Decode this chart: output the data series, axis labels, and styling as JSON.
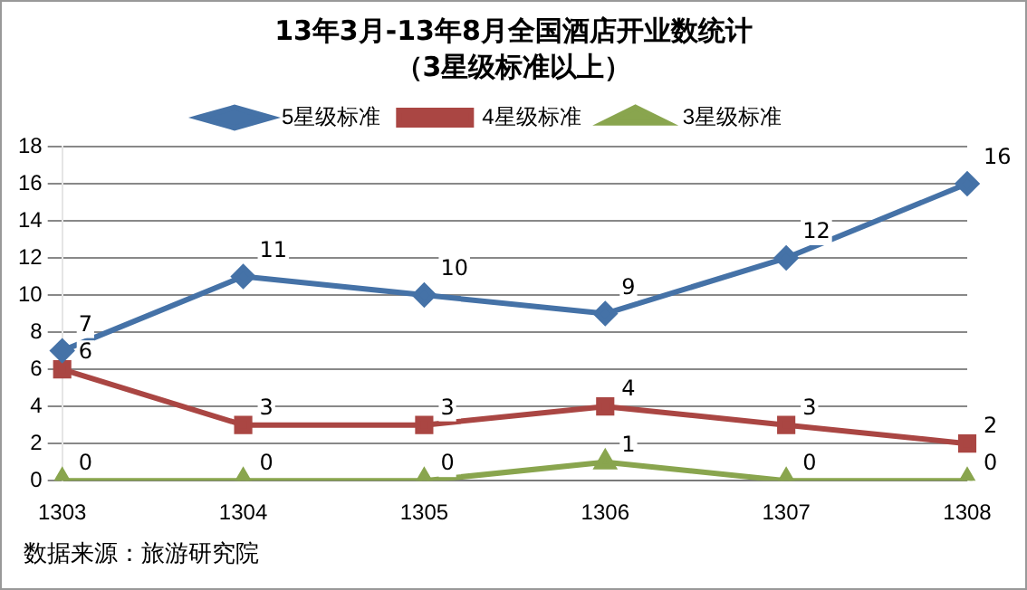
{
  "chart_data": {
    "type": "line",
    "title": "13年3月-13年8月全国酒店开业数统计",
    "subtitle": "（3星级标准以上）",
    "categories": [
      "1303",
      "1304",
      "1305",
      "1306",
      "1307",
      "1308"
    ],
    "series": [
      {
        "name": "5星级标准",
        "color": "#4572a7",
        "marker": "diamond",
        "values": [
          7,
          11,
          10,
          9,
          12,
          16
        ]
      },
      {
        "name": "4星级标准",
        "color": "#aa4643",
        "marker": "square",
        "values": [
          6,
          3,
          3,
          4,
          3,
          2
        ]
      },
      {
        "name": "3星级标准",
        "color": "#89a54e",
        "marker": "triangle",
        "values": [
          0,
          0,
          0,
          1,
          0,
          0
        ]
      }
    ],
    "ylim": [
      0,
      18
    ],
    "yticks": [
      0,
      2,
      4,
      6,
      8,
      10,
      12,
      14,
      16,
      18
    ],
    "grid": "y",
    "legend": "top",
    "data_labels": true,
    "annotations": [
      "数据来源：旅游研究院"
    ]
  }
}
